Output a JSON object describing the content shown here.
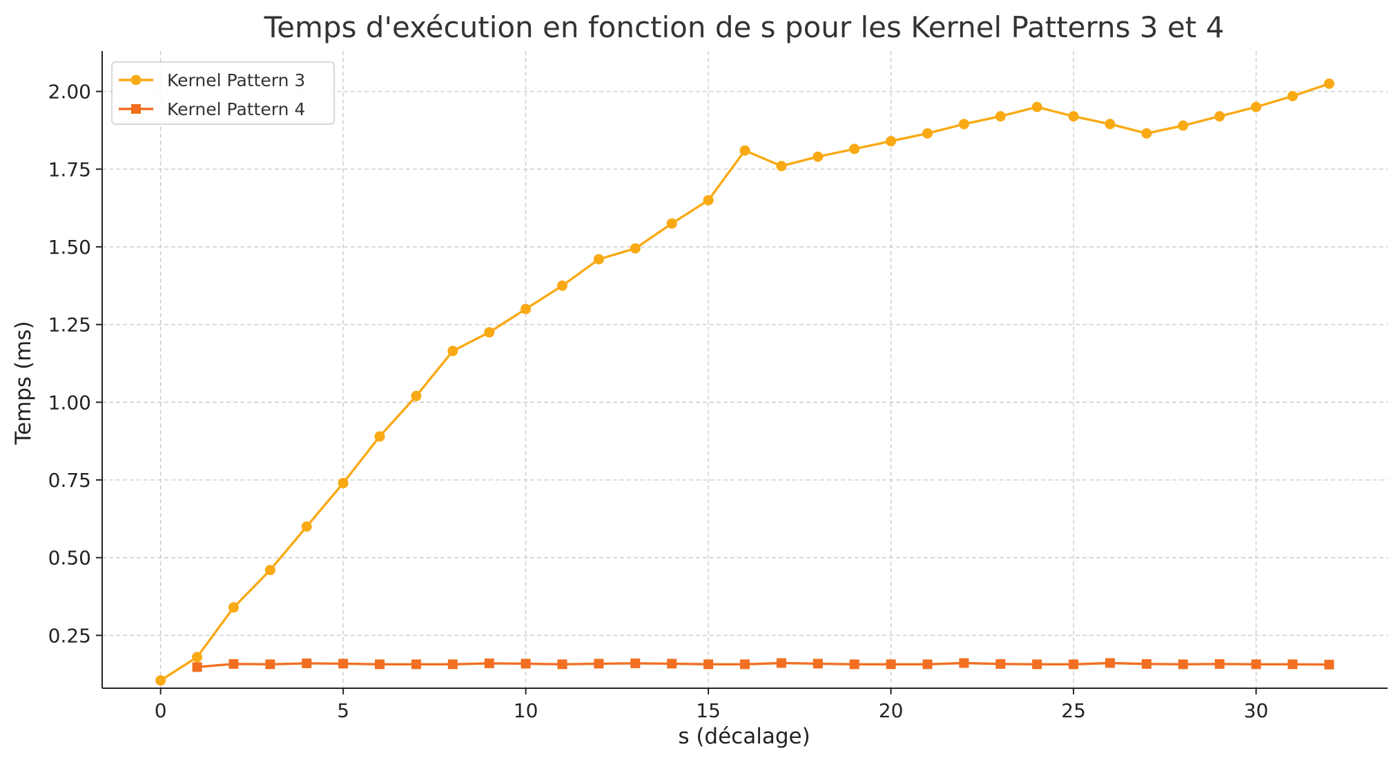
{
  "chart_data": {
    "type": "line",
    "title": "Temps d'exécution en fonction de s pour les Kernel Patterns 3 et 4",
    "xlabel": "s (décalage)",
    "ylabel": "Temps (ms)",
    "xlim": [
      -1.6,
      33.6
    ],
    "ylim": [
      0.08,
      2.13
    ],
    "xticks": [
      0,
      5,
      10,
      15,
      20,
      25,
      30
    ],
    "xtick_labels": [
      "0",
      "5",
      "10",
      "15",
      "20",
      "25",
      "30"
    ],
    "yticks": [
      0.25,
      0.5,
      0.75,
      1.0,
      1.25,
      1.5,
      1.75,
      2.0
    ],
    "ytick_labels": [
      "0.25",
      "0.50",
      "0.75",
      "1.00",
      "1.25",
      "1.50",
      "1.75",
      "2.00"
    ],
    "grid": true,
    "legend_position": "top-left",
    "series": [
      {
        "name": "Kernel Pattern 3",
        "color": "#f9a913",
        "marker": "circle",
        "x": [
          0,
          1,
          2,
          3,
          4,
          5,
          6,
          7,
          8,
          9,
          10,
          11,
          12,
          13,
          14,
          15,
          16,
          17,
          18,
          19,
          20,
          21,
          22,
          23,
          24,
          25,
          26,
          27,
          28,
          29,
          30,
          31,
          32
        ],
        "values": [
          0.105,
          0.18,
          0.34,
          0.46,
          0.6,
          0.74,
          0.89,
          1.02,
          1.165,
          1.225,
          1.3,
          1.375,
          1.46,
          1.495,
          1.575,
          1.65,
          1.81,
          1.76,
          1.79,
          1.815,
          1.84,
          1.865,
          1.895,
          1.92,
          1.95,
          1.92,
          1.895,
          1.865,
          1.89,
          1.92,
          1.95,
          1.985,
          2.025
        ]
      },
      {
        "name": "Kernel Pattern 4",
        "color": "#f26f21",
        "marker": "square",
        "x": [
          1,
          2,
          3,
          4,
          5,
          6,
          7,
          8,
          9,
          10,
          11,
          12,
          13,
          14,
          15,
          16,
          17,
          18,
          19,
          20,
          21,
          22,
          23,
          24,
          25,
          26,
          27,
          28,
          29,
          30,
          31,
          32
        ],
        "values": [
          0.148,
          0.158,
          0.157,
          0.16,
          0.159,
          0.157,
          0.157,
          0.157,
          0.16,
          0.159,
          0.157,
          0.159,
          0.16,
          0.159,
          0.157,
          0.157,
          0.161,
          0.159,
          0.157,
          0.157,
          0.157,
          0.161,
          0.158,
          0.157,
          0.157,
          0.161,
          0.158,
          0.157,
          0.158,
          0.157,
          0.157,
          0.156
        ]
      }
    ]
  }
}
